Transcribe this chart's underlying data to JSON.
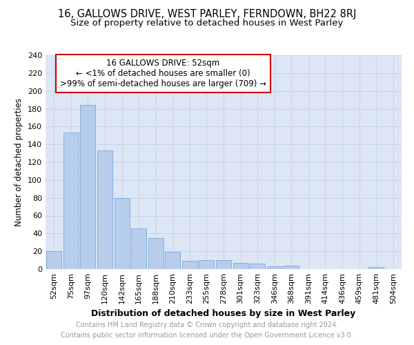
{
  "title1": "16, GALLOWS DRIVE, WEST PARLEY, FERNDOWN, BH22 8RJ",
  "title2": "Size of property relative to detached houses in West Parley",
  "xlabel": "Distribution of detached houses by size in West Parley",
  "ylabel": "Number of detached properties",
  "categories": [
    "52sqm",
    "75sqm",
    "97sqm",
    "120sqm",
    "142sqm",
    "165sqm",
    "188sqm",
    "210sqm",
    "233sqm",
    "255sqm",
    "278sqm",
    "301sqm",
    "323sqm",
    "346sqm",
    "368sqm",
    "391sqm",
    "414sqm",
    "436sqm",
    "459sqm",
    "481sqm",
    "504sqm"
  ],
  "values": [
    20,
    153,
    184,
    133,
    80,
    46,
    35,
    19,
    9,
    10,
    10,
    7,
    6,
    3,
    4,
    0,
    0,
    0,
    0,
    2,
    0
  ],
  "bar_color": "#b8ccec",
  "bar_edge_color": "#6a9fd8",
  "annotation_box_color": "#ffffff",
  "annotation_border_color": "#cc0000",
  "annotation_lines": [
    "16 GALLOWS DRIVE: 52sqm",
    "← <1% of detached houses are smaller (0)",
    ">99% of semi-detached houses are larger (709) →"
  ],
  "ylim": [
    0,
    240
  ],
  "yticks": [
    0,
    20,
    40,
    60,
    80,
    100,
    120,
    140,
    160,
    180,
    200,
    220,
    240
  ],
  "grid_color": "#c8d4e8",
  "bg_color": "#dde6f5",
  "footer_line1": "Contains HM Land Registry data © Crown copyright and database right 2024.",
  "footer_line2": "Contains public sector information licensed under the Open Government Licence v3.0.",
  "title1_fontsize": 10.5,
  "title2_fontsize": 9.5,
  "xlabel_fontsize": 9,
  "ylabel_fontsize": 8.5,
  "tick_fontsize": 8,
  "footer_fontsize": 7,
  "annotation_fontsize": 8.5
}
